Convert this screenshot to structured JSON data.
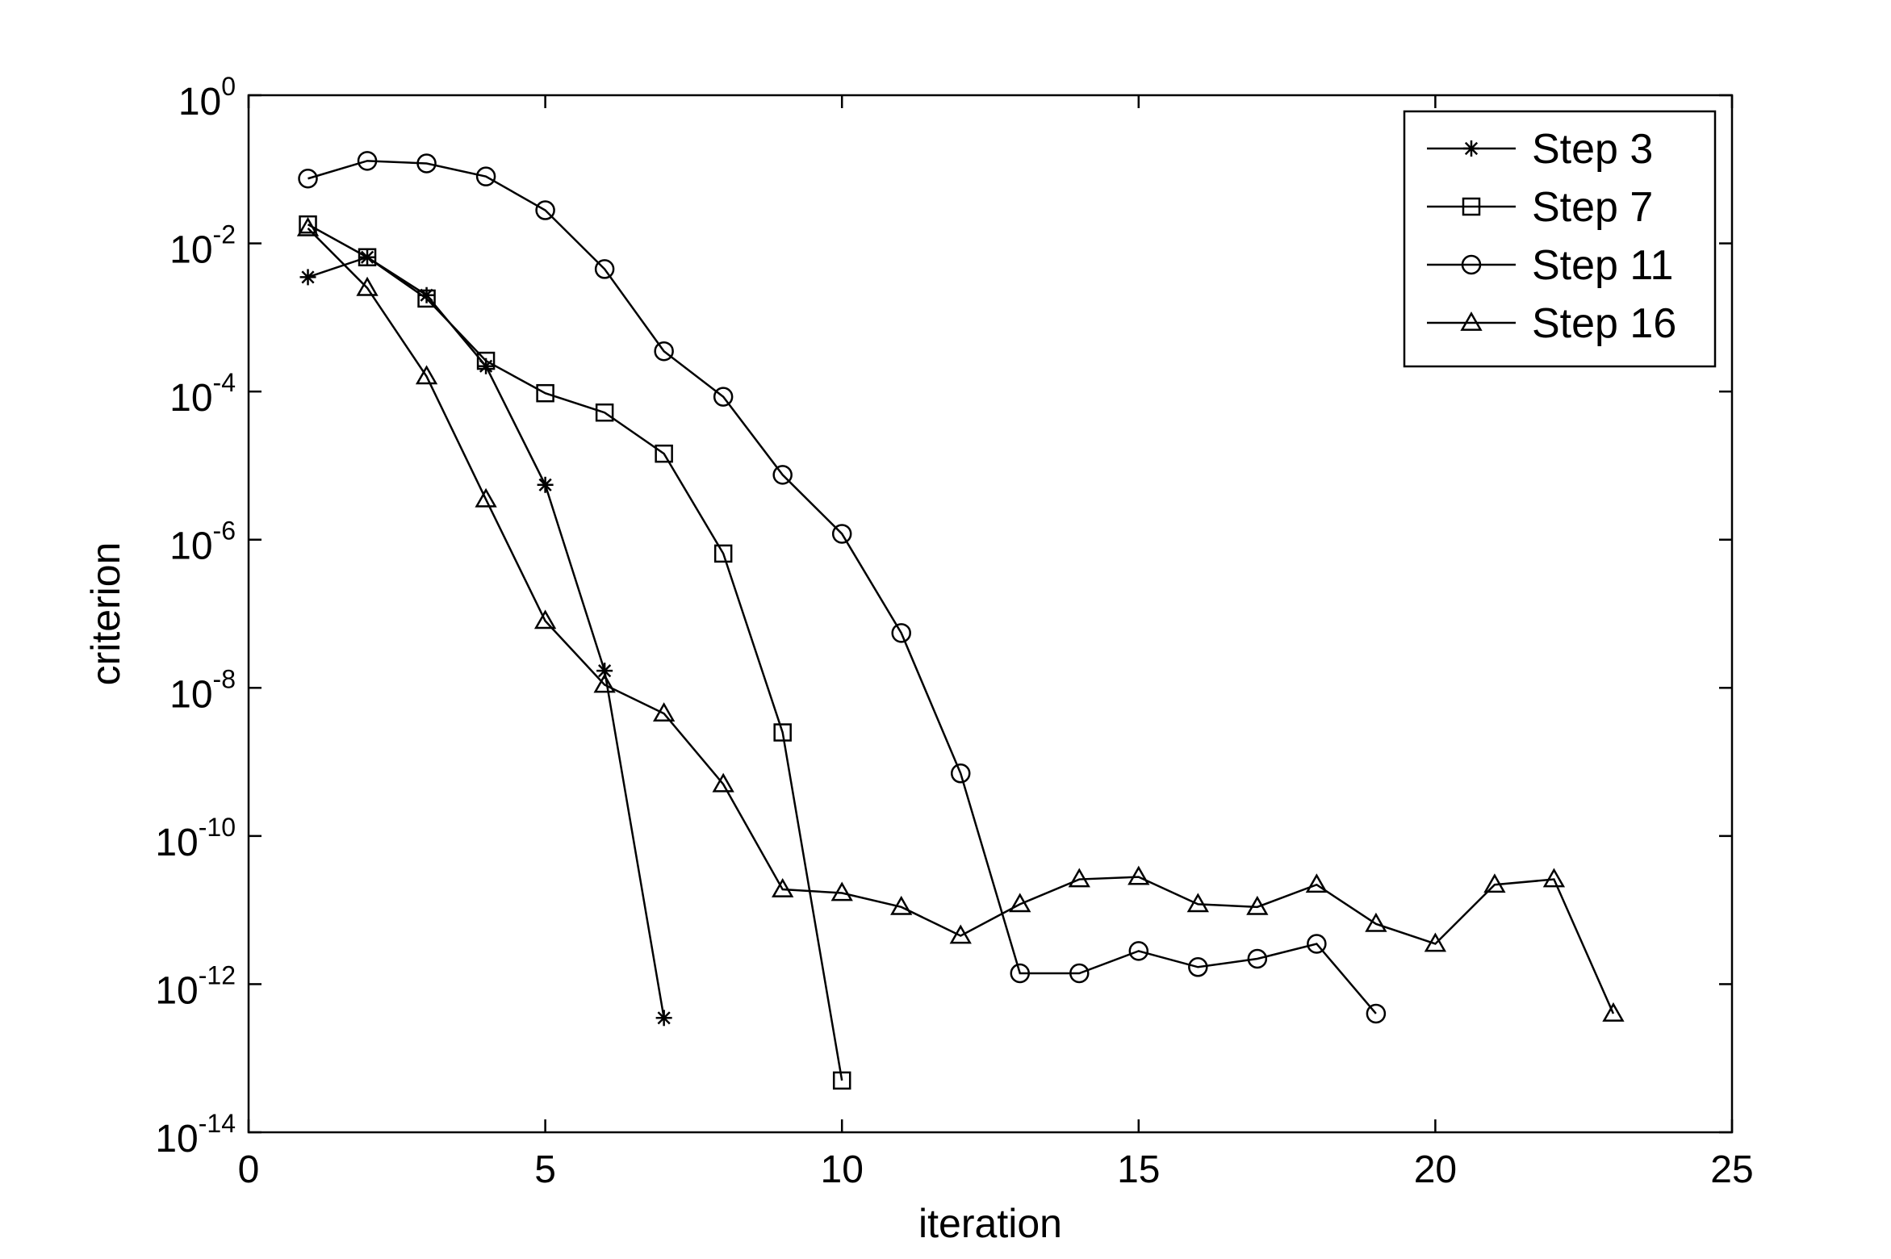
{
  "chart_data": {
    "type": "line",
    "xlabel": "iteration",
    "ylabel": "criterion",
    "xlim": [
      0,
      25
    ],
    "ylim": [
      1e-14,
      1
    ],
    "yscale": "log",
    "grid": false,
    "legend_position": "top-right",
    "x_ticks": [
      {
        "value": 0,
        "label": "0"
      },
      {
        "value": 5,
        "label": "5"
      },
      {
        "value": 10,
        "label": "10"
      },
      {
        "value": 15,
        "label": "15"
      },
      {
        "value": 20,
        "label": "20"
      },
      {
        "value": 25,
        "label": "25"
      }
    ],
    "y_ticks": [
      {
        "value": 1,
        "base": "10",
        "exp": "0"
      },
      {
        "value": 0.01,
        "base": "10",
        "exp": "-2"
      },
      {
        "value": 0.0001,
        "base": "10",
        "exp": "-4"
      },
      {
        "value": 1e-06,
        "base": "10",
        "exp": "-6"
      },
      {
        "value": 1e-08,
        "base": "10",
        "exp": "-8"
      },
      {
        "value": 1e-10,
        "base": "10",
        "exp": "-10"
      },
      {
        "value": 1e-12,
        "base": "10",
        "exp": "-12"
      },
      {
        "value": 1e-14,
        "base": "10",
        "exp": "-14"
      }
    ],
    "series": [
      {
        "name": "Step 3",
        "marker": "asterisk",
        "x": [
          1,
          2,
          3,
          4,
          5,
          6,
          7
        ],
        "y": [
          0.0035,
          0.0065,
          0.002,
          0.00022,
          5.5e-06,
          1.7e-08,
          3.5e-13
        ]
      },
      {
        "name": "Step 7",
        "marker": "square",
        "x": [
          1,
          2,
          3,
          4,
          5,
          6,
          7,
          8,
          9,
          10
        ],
        "y": [
          0.018,
          0.0065,
          0.0018,
          0.00026,
          9.5e-05,
          5.2e-05,
          1.45e-05,
          6.5e-07,
          2.5e-09,
          5e-14
        ]
      },
      {
        "name": "Step 11",
        "marker": "circle",
        "x": [
          1,
          2,
          3,
          4,
          5,
          6,
          7,
          8,
          9,
          10,
          11,
          12,
          13,
          14,
          15,
          16,
          17,
          18,
          19
        ],
        "y": [
          0.075,
          0.13,
          0.12,
          0.08,
          0.028,
          0.0045,
          0.00035,
          8.5e-05,
          7.5e-06,
          1.2e-06,
          5.5e-08,
          7e-10,
          1.4e-12,
          1.4e-12,
          2.8e-12,
          1.7e-12,
          2.2e-12,
          3.5e-12,
          4e-13
        ]
      },
      {
        "name": "Step 16",
        "marker": "triangle",
        "x": [
          1,
          2,
          3,
          4,
          5,
          6,
          7,
          8,
          9,
          10,
          11,
          12,
          13,
          14,
          15,
          16,
          17,
          18,
          19,
          20,
          21,
          22,
          23
        ],
        "y": [
          0.016,
          0.0025,
          0.00016,
          3.5e-06,
          8e-08,
          1.1e-08,
          4.5e-09,
          5e-10,
          1.9e-11,
          1.7e-11,
          1.1e-11,
          4.5e-12,
          1.2e-11,
          2.6e-11,
          2.8e-11,
          1.2e-11,
          1.1e-11,
          2.2e-11,
          6.5e-12,
          3.5e-12,
          2.2e-11,
          2.6e-11,
          4e-13
        ]
      }
    ]
  }
}
